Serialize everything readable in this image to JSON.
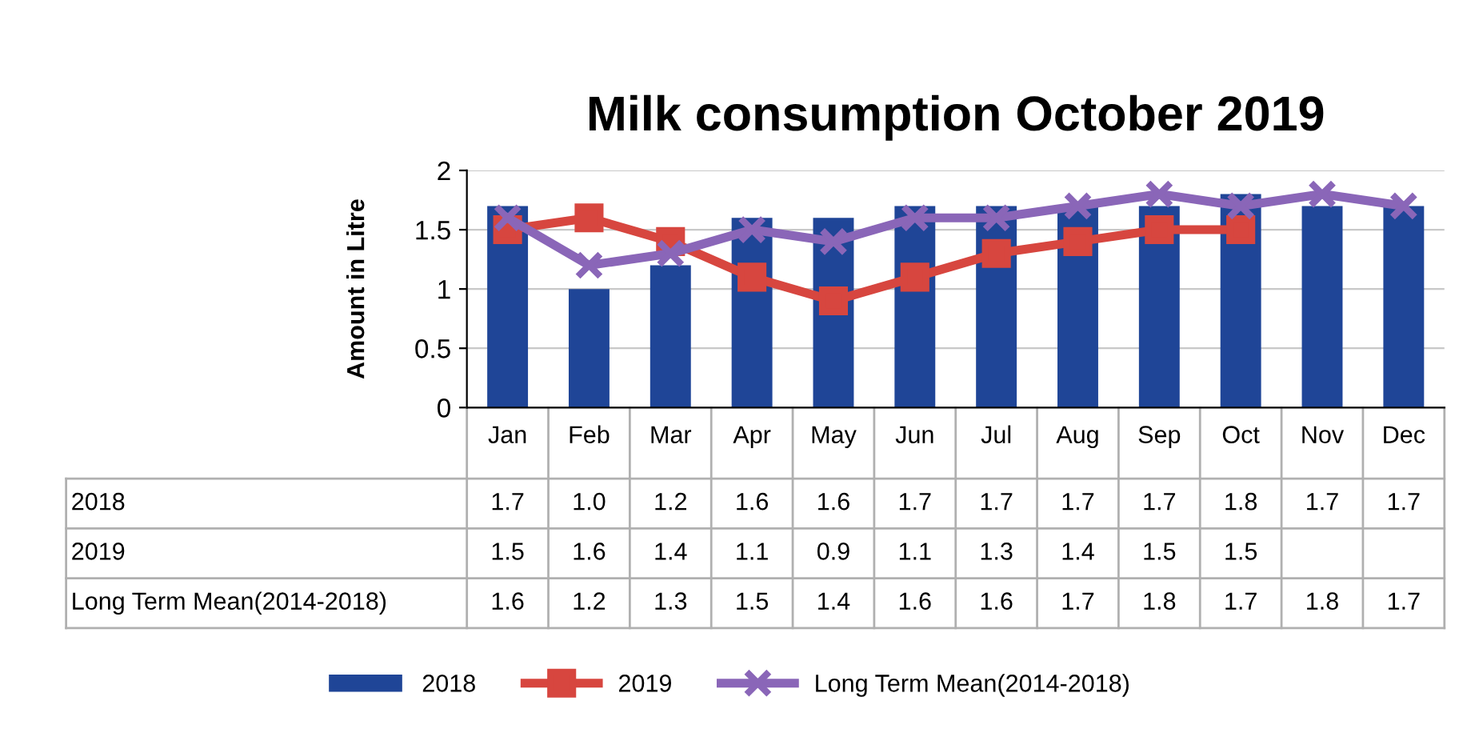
{
  "chart_data": {
    "type": "bar",
    "title": "Milk consumption October 2019",
    "ylabel": "Amount in Litre",
    "categories": [
      "Jan",
      "Feb",
      "Mar",
      "Apr",
      "May",
      "Jun",
      "Jul",
      "Aug",
      "Sep",
      "Oct",
      "Nov",
      "Dec"
    ],
    "series": [
      {
        "name": "2018",
        "color": "#1f4597",
        "values": [
          1.7,
          1.0,
          1.2,
          1.6,
          1.6,
          1.7,
          1.7,
          1.7,
          1.7,
          1.8,
          1.7,
          1.7
        ],
        "value_labels": [
          "1.7",
          "1.0",
          "1.2",
          "1.6",
          "1.6",
          "1.7",
          "1.7",
          "1.7",
          "1.7",
          "1.8",
          "1.7",
          "1.7"
        ]
      },
      {
        "name": "2019",
        "type": "line",
        "color": "#d7463f",
        "marker": "square",
        "values": [
          1.5,
          1.6,
          1.4,
          1.1,
          0.9,
          1.1,
          1.3,
          1.4,
          1.5,
          1.5,
          null,
          null
        ],
        "value_labels": [
          "1.5",
          "1.6",
          "1.4",
          "1.1",
          "0.9",
          "1.1",
          "1.3",
          "1.4",
          "1.5",
          "1.5",
          null,
          null
        ]
      },
      {
        "name": "Long Term Mean(2014-2018)",
        "type": "line",
        "color": "#8a66b8",
        "marker": "cross",
        "values": [
          1.6,
          1.2,
          1.3,
          1.5,
          1.4,
          1.6,
          1.6,
          1.7,
          1.8,
          1.7,
          1.8,
          1.7
        ],
        "value_labels": [
          "1.6",
          "1.2",
          "1.3",
          "1.5",
          "1.4",
          "1.6",
          "1.6",
          "1.7",
          "1.8",
          "1.7",
          "1.8",
          "1.7"
        ]
      }
    ],
    "ylim": [
      0,
      2
    ],
    "yticks": [
      0,
      0.5,
      1,
      1.5,
      2
    ],
    "grid": "y",
    "legend": "bottom"
  }
}
